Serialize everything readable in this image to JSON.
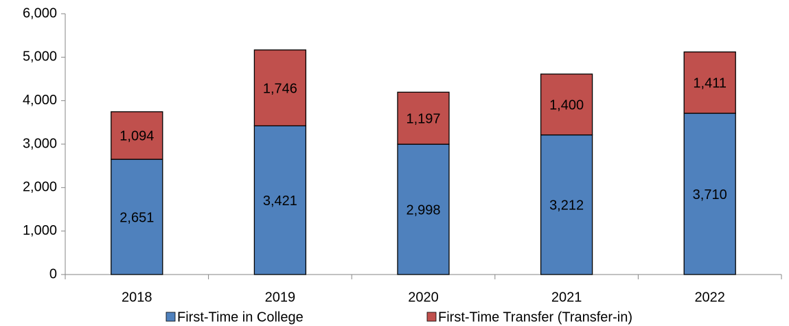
{
  "chart_data": {
    "type": "stacked-bar",
    "categories": [
      "2018",
      "2019",
      "2020",
      "2021",
      "2022"
    ],
    "series": [
      {
        "name": "First-Time in College",
        "color": "#4f81bd",
        "values": [
          2651,
          3421,
          2998,
          3212,
          3710
        ],
        "value_labels": [
          "2,651",
          "3,421",
          "2,998",
          "3,212",
          "3,710"
        ]
      },
      {
        "name": "First-Time Transfer (Transfer-in)",
        "color": "#c0504d",
        "values": [
          1094,
          1746,
          1197,
          1400,
          1411
        ],
        "value_labels": [
          "1,094",
          "1,746",
          "1,197",
          "1,400",
          "1,411"
        ]
      }
    ],
    "ylim": [
      0,
      6000
    ],
    "yticks": [
      0,
      {
        "value": 1000,
        "label": "1,000"
      },
      {
        "value": 2000,
        "label": "2,000"
      },
      {
        "value": 3000,
        "label": "3,000"
      },
      {
        "value": 4000,
        "label": "4,000"
      },
      {
        "value": 5000,
        "label": "5,000"
      },
      {
        "value": 6000,
        "label": "6,000"
      }
    ],
    "legend": "bottom"
  }
}
